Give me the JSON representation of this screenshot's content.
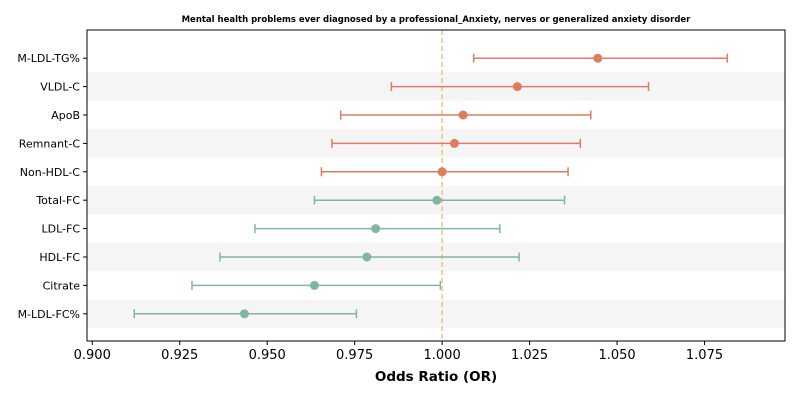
{
  "chart_data": {
    "type": "forest",
    "title": "Mental health problems ever diagnosed by a professional_Anxiety, nerves or generalized anxiety disorder",
    "xlabel": "Odds Ratio (OR)",
    "xlim": [
      0.8985,
      1.098
    ],
    "xticks": [
      "0.900",
      "0.925",
      "0.950",
      "0.975",
      "1.000",
      "1.025",
      "1.050",
      "1.075"
    ],
    "reference_line": 1.0,
    "grid": false,
    "colors": {
      "risk": "#e07b5f",
      "protective": "#82b79f",
      "reference": "#f0c27b",
      "band": "#f5f5f5"
    },
    "rows": [
      {
        "label": "M-LDL-TG%",
        "or": 1.0445,
        "low": 1.009,
        "high": 1.0815,
        "group": "risk"
      },
      {
        "label": "VLDL-C",
        "or": 1.0215,
        "low": 0.9855,
        "high": 1.059,
        "group": "risk"
      },
      {
        "label": "ApoB",
        "or": 1.006,
        "low": 0.971,
        "high": 1.0425,
        "group": "risk"
      },
      {
        "label": "Remnant-C",
        "or": 1.0035,
        "low": 0.9685,
        "high": 1.0395,
        "group": "risk"
      },
      {
        "label": "Non-HDL-C",
        "or": 1.0,
        "low": 0.9655,
        "high": 1.036,
        "group": "risk"
      },
      {
        "label": "Total-FC",
        "or": 0.9985,
        "low": 0.9635,
        "high": 1.035,
        "group": "protective"
      },
      {
        "label": "LDL-FC",
        "or": 0.981,
        "low": 0.9465,
        "high": 1.0165,
        "group": "protective"
      },
      {
        "label": "HDL-FC",
        "or": 0.9785,
        "low": 0.9365,
        "high": 1.022,
        "group": "protective"
      },
      {
        "label": "Citrate",
        "or": 0.9635,
        "low": 0.9285,
        "high": 0.9995,
        "group": "protective"
      },
      {
        "label": "M-LDL-FC%",
        "or": 0.9435,
        "low": 0.912,
        "high": 0.9755,
        "group": "protective"
      }
    ]
  }
}
